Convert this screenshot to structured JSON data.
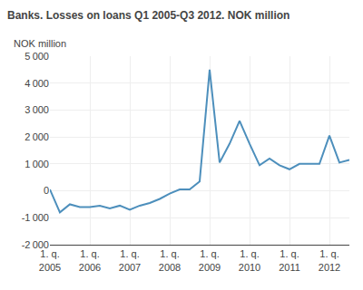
{
  "chart_data": {
    "type": "line",
    "title": "Banks. Losses on loans Q1 2005-Q3 2012. NOK million",
    "ylabel": "NOK million",
    "color": "#4d8fbc",
    "grid": true,
    "categories": [
      "1. q.\n2005",
      null,
      null,
      null,
      "1. q.\n2006",
      null,
      null,
      null,
      "1. q.\n2007",
      null,
      null,
      null,
      "1. q.\n2008",
      null,
      null,
      null,
      "1. q.\n2009",
      null,
      null,
      null,
      "1. q.\n2010",
      null,
      null,
      null,
      "1. q.\n2011",
      null,
      null,
      null,
      "1. q.\n2012",
      null,
      null
    ],
    "values": [
      50,
      -800,
      -500,
      -600,
      -600,
      -550,
      -650,
      -550,
      -700,
      -550,
      -450,
      -300,
      -100,
      50,
      50,
      350,
      4500,
      1050,
      1750,
      2600,
      1750,
      950,
      1200,
      950,
      800,
      1000,
      1000,
      1000,
      2050,
      1050,
      1150
    ],
    "ylim": [
      -2000,
      5000
    ],
    "yticks": [
      {
        "value": -2000,
        "label": "-2 000"
      },
      {
        "value": -1000,
        "label": "-1 000"
      },
      0,
      {
        "value": 1000,
        "label": "1 000"
      },
      {
        "value": 2000,
        "label": "2 000"
      },
      {
        "value": 3000,
        "label": "3 000"
      },
      {
        "value": 4000,
        "label": "4 000"
      },
      {
        "value": 5000,
        "label": "5 000"
      }
    ]
  }
}
